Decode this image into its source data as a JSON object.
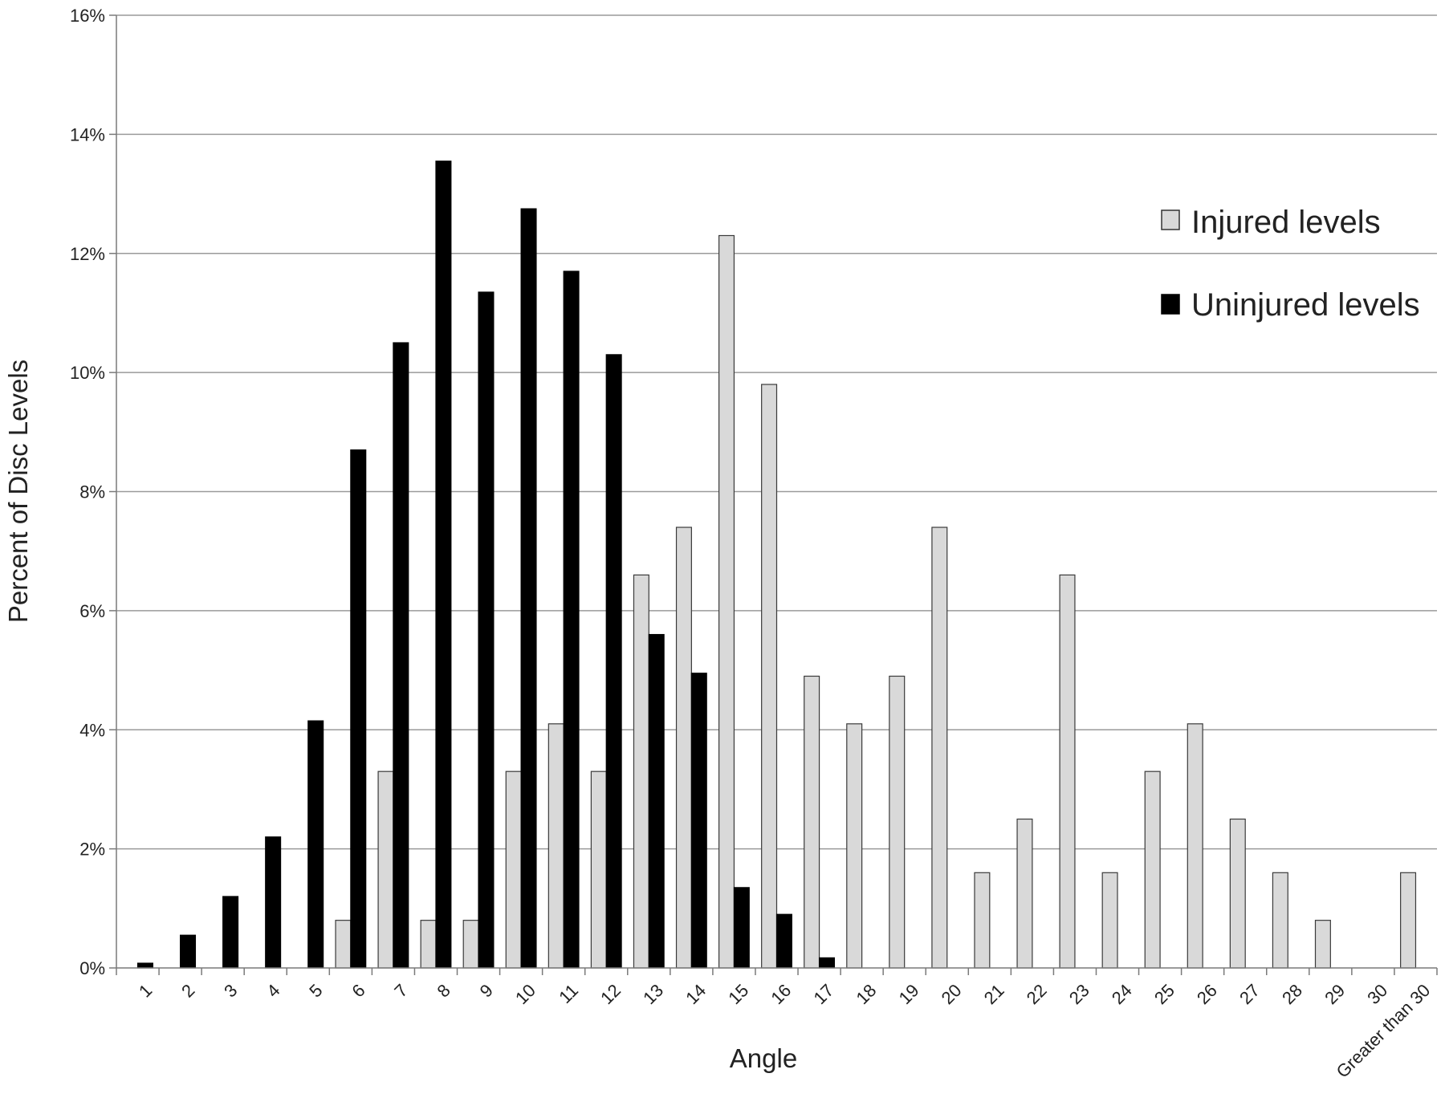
{
  "chart_data": {
    "type": "bar",
    "xlabel": "Angle",
    "ylabel": "Percent of Disc Levels",
    "ylim": [
      0,
      16
    ],
    "y_ticks": [
      0,
      2,
      4,
      6,
      8,
      10,
      12,
      14,
      16
    ],
    "y_tick_labels": [
      "0%",
      "2%",
      "4%",
      "6%",
      "8%",
      "10%",
      "12%",
      "14%",
      "16%"
    ],
    "grid": "horizontal",
    "legend_position": "top-right",
    "categories": [
      "1",
      "2",
      "3",
      "4",
      "5",
      "6",
      "7",
      "8",
      "9",
      "10",
      "11",
      "12",
      "13",
      "14",
      "15",
      "16",
      "17",
      "18",
      "19",
      "20",
      "21",
      "22",
      "23",
      "24",
      "25",
      "26",
      "27",
      "28",
      "29",
      "30",
      "Greater than 30"
    ],
    "series": [
      {
        "name": "Injured levels",
        "color": "#d9d9d9",
        "values": [
          0,
          0,
          0,
          0,
          0,
          0.8,
          3.3,
          0.8,
          0.8,
          3.3,
          4.1,
          3.3,
          6.6,
          7.4,
          12.3,
          9.8,
          4.9,
          4.1,
          4.9,
          7.4,
          1.6,
          2.5,
          6.6,
          1.6,
          3.3,
          4.1,
          2.5,
          1.6,
          0.8,
          0,
          1.6
        ]
      },
      {
        "name": "Uninjured levels",
        "color": "#000000",
        "values": [
          0.08,
          0.55,
          1.2,
          2.2,
          4.15,
          8.7,
          10.5,
          13.55,
          11.35,
          12.75,
          11.7,
          10.3,
          5.6,
          4.95,
          1.35,
          0.9,
          0.17,
          0,
          0,
          0,
          0,
          0,
          0,
          0,
          0,
          0,
          0,
          0,
          0,
          0,
          0
        ]
      }
    ]
  }
}
